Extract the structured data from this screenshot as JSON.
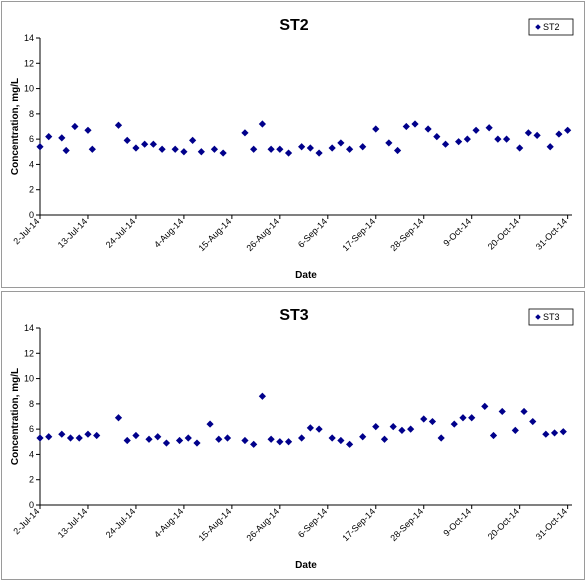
{
  "chart_data": [
    {
      "type": "scatter",
      "title": "ST2",
      "xlabel": "Date",
      "ylabel": "Concentration, mg/L",
      "ylim": [
        0,
        14
      ],
      "yticks": [
        0,
        2,
        4,
        6,
        8,
        10,
        12,
        14
      ],
      "xlim": [
        "2014-07-02",
        "2014-11-01"
      ],
      "xtick_labels": [
        "2-Jul-14",
        "13-Jul-14",
        "24-Jul-14",
        "4-Aug-14",
        "15-Aug-14",
        "26-Aug-14",
        "6-Sep-14",
        "17-Sep-14",
        "28-Sep-14",
        "9-Oct-14",
        "20-Oct-14",
        "31-Oct-14"
      ],
      "xtick_dates": [
        "2014-07-02",
        "2014-07-13",
        "2014-07-24",
        "2014-08-04",
        "2014-08-15",
        "2014-08-26",
        "2014-09-06",
        "2014-09-17",
        "2014-09-28",
        "2014-10-09",
        "2014-10-20",
        "2014-10-31"
      ],
      "grid": false,
      "legend": "top-right",
      "marker_color": "#00008b",
      "series": [
        {
          "name": "ST2",
          "points": [
            [
              "2014-07-02",
              5.4
            ],
            [
              "2014-07-04",
              6.2
            ],
            [
              "2014-07-07",
              6.1
            ],
            [
              "2014-07-08",
              5.1
            ],
            [
              "2014-07-10",
              7.0
            ],
            [
              "2014-07-13",
              6.7
            ],
            [
              "2014-07-14",
              5.2
            ],
            [
              "2014-07-20",
              7.1
            ],
            [
              "2014-07-22",
              5.9
            ],
            [
              "2014-07-24",
              5.3
            ],
            [
              "2014-07-26",
              5.6
            ],
            [
              "2014-07-28",
              5.6
            ],
            [
              "2014-07-30",
              5.2
            ],
            [
              "2014-08-02",
              5.2
            ],
            [
              "2014-08-04",
              5.0
            ],
            [
              "2014-08-06",
              5.9
            ],
            [
              "2014-08-08",
              5.0
            ],
            [
              "2014-08-11",
              5.2
            ],
            [
              "2014-08-13",
              4.9
            ],
            [
              "2014-08-18",
              6.5
            ],
            [
              "2014-08-20",
              5.2
            ],
            [
              "2014-08-22",
              7.2
            ],
            [
              "2014-08-24",
              5.2
            ],
            [
              "2014-08-26",
              5.2
            ],
            [
              "2014-08-28",
              4.9
            ],
            [
              "2014-08-31",
              5.4
            ],
            [
              "2014-09-02",
              5.3
            ],
            [
              "2014-09-04",
              4.9
            ],
            [
              "2014-09-07",
              5.3
            ],
            [
              "2014-09-09",
              5.7
            ],
            [
              "2014-09-11",
              5.2
            ],
            [
              "2014-09-14",
              5.4
            ],
            [
              "2014-09-17",
              6.8
            ],
            [
              "2014-09-20",
              5.7
            ],
            [
              "2014-09-22",
              5.1
            ],
            [
              "2014-09-24",
              7.0
            ],
            [
              "2014-09-26",
              7.2
            ],
            [
              "2014-09-29",
              6.8
            ],
            [
              "2014-10-01",
              6.2
            ],
            [
              "2014-10-03",
              5.6
            ],
            [
              "2014-10-06",
              5.8
            ],
            [
              "2014-10-08",
              6.0
            ],
            [
              "2014-10-10",
              6.7
            ],
            [
              "2014-10-13",
              6.9
            ],
            [
              "2014-10-15",
              6.0
            ],
            [
              "2014-10-17",
              6.0
            ],
            [
              "2014-10-20",
              5.3
            ],
            [
              "2014-10-22",
              6.5
            ],
            [
              "2014-10-24",
              6.3
            ],
            [
              "2014-10-27",
              5.4
            ],
            [
              "2014-10-29",
              6.4
            ],
            [
              "2014-10-31",
              6.7
            ]
          ]
        }
      ]
    },
    {
      "type": "scatter",
      "title": "ST3",
      "xlabel": "Date",
      "ylabel": "Concentration, mg/L",
      "ylim": [
        0,
        14
      ],
      "yticks": [
        0,
        2,
        4,
        6,
        8,
        10,
        12,
        14
      ],
      "xlim": [
        "2014-07-02",
        "2014-11-01"
      ],
      "xtick_labels": [
        "2-Jul-14",
        "13-Jul-14",
        "24-Jul-14",
        "4-Aug-14",
        "15-Aug-14",
        "26-Aug-14",
        "6-Sep-14",
        "17-Sep-14",
        "28-Sep-14",
        "9-Oct-14",
        "20-Oct-14",
        "31-Oct-14"
      ],
      "xtick_dates": [
        "2014-07-02",
        "2014-07-13",
        "2014-07-24",
        "2014-08-04",
        "2014-08-15",
        "2014-08-26",
        "2014-09-06",
        "2014-09-17",
        "2014-09-28",
        "2014-10-09",
        "2014-10-20",
        "2014-10-31"
      ],
      "grid": false,
      "legend": "top-right",
      "marker_color": "#00008b",
      "series": [
        {
          "name": "ST3",
          "points": [
            [
              "2014-07-02",
              5.3
            ],
            [
              "2014-07-04",
              5.4
            ],
            [
              "2014-07-07",
              5.6
            ],
            [
              "2014-07-09",
              5.3
            ],
            [
              "2014-07-11",
              5.3
            ],
            [
              "2014-07-13",
              5.6
            ],
            [
              "2014-07-15",
              5.5
            ],
            [
              "2014-07-20",
              6.9
            ],
            [
              "2014-07-22",
              5.1
            ],
            [
              "2014-07-24",
              5.5
            ],
            [
              "2014-07-27",
              5.2
            ],
            [
              "2014-07-29",
              5.4
            ],
            [
              "2014-07-31",
              4.9
            ],
            [
              "2014-08-03",
              5.1
            ],
            [
              "2014-08-05",
              5.3
            ],
            [
              "2014-08-07",
              4.9
            ],
            [
              "2014-08-10",
              6.4
            ],
            [
              "2014-08-12",
              5.2
            ],
            [
              "2014-08-14",
              5.3
            ],
            [
              "2014-08-18",
              5.1
            ],
            [
              "2014-08-20",
              4.8
            ],
            [
              "2014-08-22",
              8.6
            ],
            [
              "2014-08-24",
              5.2
            ],
            [
              "2014-08-26",
              5.0
            ],
            [
              "2014-08-28",
              5.0
            ],
            [
              "2014-08-31",
              5.3
            ],
            [
              "2014-09-02",
              6.1
            ],
            [
              "2014-09-04",
              6.0
            ],
            [
              "2014-09-07",
              5.3
            ],
            [
              "2014-09-09",
              5.1
            ],
            [
              "2014-09-11",
              4.8
            ],
            [
              "2014-09-14",
              5.4
            ],
            [
              "2014-09-17",
              6.2
            ],
            [
              "2014-09-19",
              5.2
            ],
            [
              "2014-09-21",
              6.2
            ],
            [
              "2014-09-23",
              5.9
            ],
            [
              "2014-09-25",
              6.0
            ],
            [
              "2014-09-28",
              6.8
            ],
            [
              "2014-09-30",
              6.6
            ],
            [
              "2014-10-02",
              5.3
            ],
            [
              "2014-10-05",
              6.4
            ],
            [
              "2014-10-07",
              6.9
            ],
            [
              "2014-10-09",
              6.9
            ],
            [
              "2014-10-12",
              7.8
            ],
            [
              "2014-10-14",
              5.5
            ],
            [
              "2014-10-16",
              7.4
            ],
            [
              "2014-10-19",
              5.9
            ],
            [
              "2014-10-21",
              7.4
            ],
            [
              "2014-10-23",
              6.6
            ],
            [
              "2014-10-26",
              5.6
            ],
            [
              "2014-10-28",
              5.7
            ],
            [
              "2014-10-30",
              5.8
            ]
          ]
        }
      ]
    }
  ]
}
